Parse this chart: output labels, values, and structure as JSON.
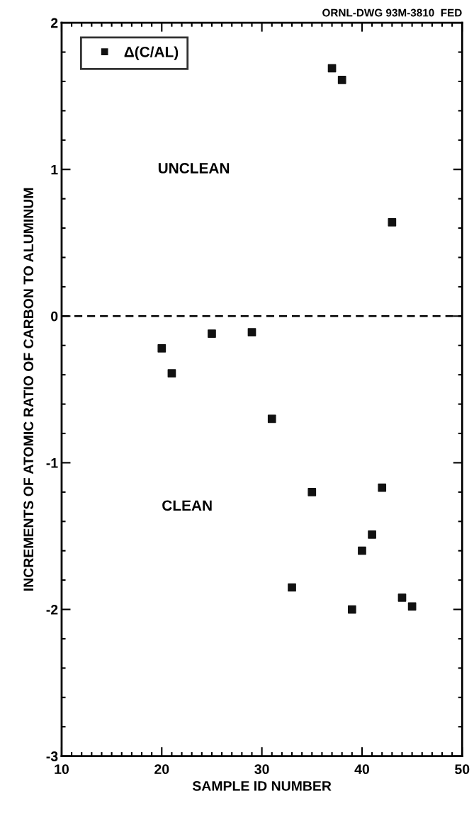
{
  "chart_data": {
    "type": "scatter",
    "xlabel": "SAMPLE ID NUMBER",
    "ylabel": "INCREMENTS OF ATOMIC RATIO OF CARBON TO ALUMINUM",
    "annotations": [
      "ORNL-DWG 93M-3810  FED",
      "UNCLEAN",
      "CLEAN"
    ],
    "x": [
      20,
      21,
      25,
      29,
      31,
      33,
      35,
      37,
      38,
      39,
      40,
      41,
      42,
      43,
      44,
      45
    ],
    "series": [
      {
        "name": "Δ(C/AL)",
        "color": "#111111",
        "values": [
          -0.22,
          -0.39,
          -0.12,
          -0.11,
          -0.7,
          -1.85,
          -1.2,
          1.69,
          1.61,
          -2.0,
          -1.6,
          -1.49,
          -1.17,
          0.64,
          -1.92,
          -1.98
        ]
      }
    ],
    "marker": "square",
    "xlim": [
      10,
      50
    ],
    "ylim": [
      -3,
      2
    ],
    "xticks": [
      10,
      {
        "value": 11,
        "label": null
      },
      {
        "value": 12,
        "label": null
      },
      {
        "value": 13,
        "label": null
      },
      {
        "value": 14,
        "label": null
      },
      {
        "value": 15,
        "label": null
      },
      {
        "value": 16,
        "label": null
      },
      {
        "value": 17,
        "label": null
      },
      {
        "value": 18,
        "label": null
      },
      {
        "value": 19,
        "label": null
      },
      20,
      {
        "value": 21,
        "label": null
      },
      {
        "value": 22,
        "label": null
      },
      {
        "value": 23,
        "label": null
      },
      {
        "value": 24,
        "label": null
      },
      {
        "value": 25,
        "label": null
      },
      {
        "value": 26,
        "label": null
      },
      {
        "value": 27,
        "label": null
      },
      {
        "value": 28,
        "label": null
      },
      {
        "value": 29,
        "label": null
      },
      30,
      {
        "value": 31,
        "label": null
      },
      {
        "value": 32,
        "label": null
      },
      {
        "value": 33,
        "label": null
      },
      {
        "value": 34,
        "label": null
      },
      {
        "value": 35,
        "label": null
      },
      {
        "value": 36,
        "label": null
      },
      {
        "value": 37,
        "label": null
      },
      {
        "value": 38,
        "label": null
      },
      {
        "value": 39,
        "label": null
      },
      40,
      {
        "value": 41,
        "label": null
      },
      {
        "value": 42,
        "label": null
      },
      {
        "value": 43,
        "label": null
      },
      {
        "value": 44,
        "label": null
      },
      {
        "value": 45,
        "label": null
      },
      {
        "value": 46,
        "label": null
      },
      {
        "value": 47,
        "label": null
      },
      {
        "value": 48,
        "label": null
      },
      {
        "value": 49,
        "label": null
      },
      50
    ],
    "yticks": [
      -3,
      {
        "value": -2.8,
        "label": null
      },
      {
        "value": -2.6,
        "label": null
      },
      {
        "value": -2.4,
        "label": null
      },
      {
        "value": -2.2,
        "label": null
      },
      -2,
      {
        "value": -1.8,
        "label": null
      },
      {
        "value": -1.6,
        "label": null
      },
      {
        "value": -1.4,
        "label": null
      },
      {
        "value": -1.2,
        "label": null
      },
      -1,
      {
        "value": -0.8,
        "label": null
      },
      {
        "value": -0.6,
        "label": null
      },
      {
        "value": -0.4,
        "label": null
      },
      {
        "value": -0.2,
        "label": null
      },
      0,
      {
        "value": 0.2,
        "label": null
      },
      {
        "value": 0.4,
        "label": null
      },
      {
        "value": 0.6,
        "label": null
      },
      {
        "value": 0.8,
        "label": null
      },
      1,
      {
        "value": 1.2,
        "label": null
      },
      {
        "value": 1.4,
        "label": null
      },
      {
        "value": 1.6,
        "label": null
      },
      {
        "value": 1.8,
        "label": null
      },
      2
    ],
    "ref_lines": [
      {
        "axis": "y",
        "value": 0,
        "label": null,
        "color": "#111111",
        "line_style": "dashed"
      }
    ],
    "legend": "top left",
    "grid": false
  }
}
